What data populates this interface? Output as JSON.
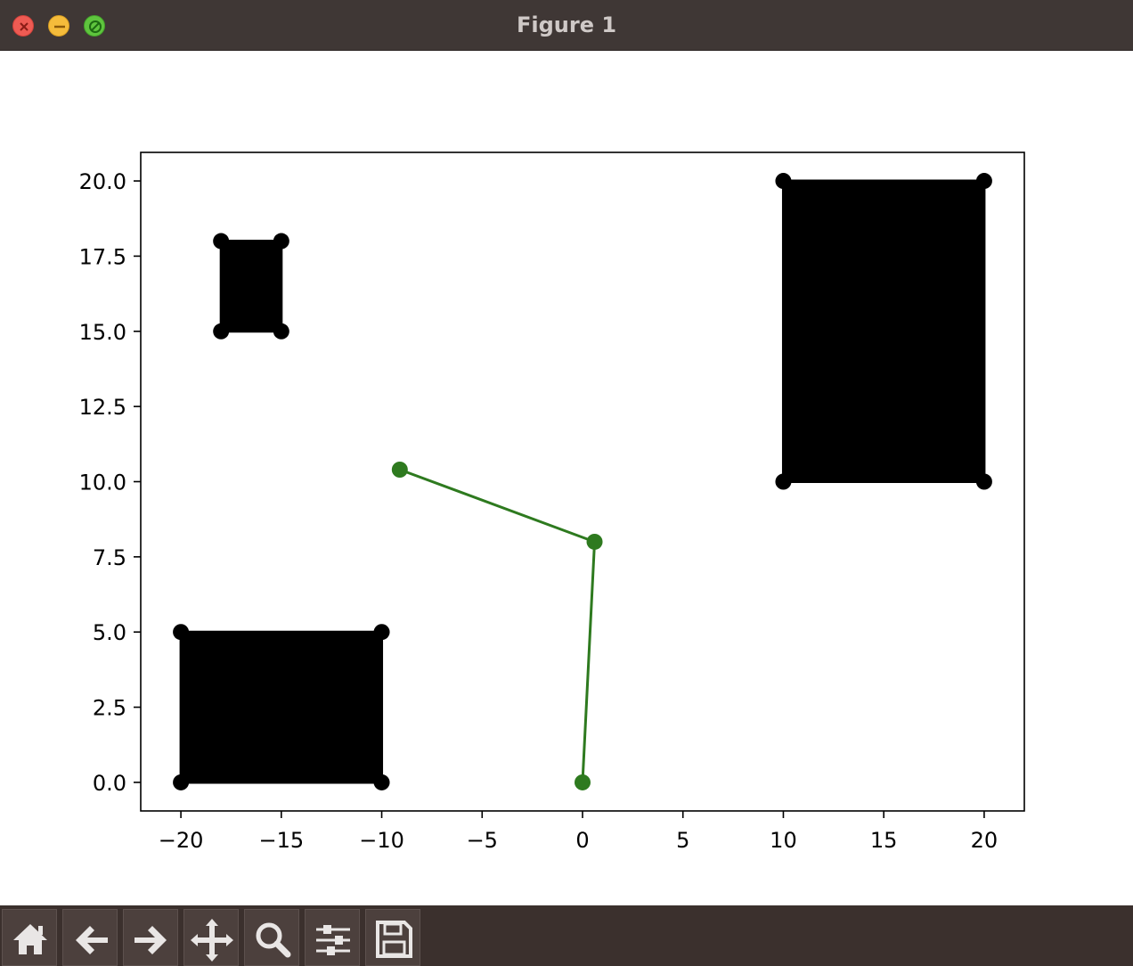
{
  "window": {
    "title": "Figure 1"
  },
  "toolbar": {
    "buttons": [
      {
        "name": "home-button",
        "icon": "home-icon"
      },
      {
        "name": "back-button",
        "icon": "arrow-left-icon"
      },
      {
        "name": "forward-button",
        "icon": "arrow-right-icon"
      },
      {
        "name": "pan-button",
        "icon": "move-icon"
      },
      {
        "name": "zoom-button",
        "icon": "magnifier-icon"
      },
      {
        "name": "configure-subplots-button",
        "icon": "sliders-icon"
      },
      {
        "name": "save-button",
        "icon": "floppy-disk-icon"
      }
    ]
  },
  "colors": {
    "titlebar": "#3f3735",
    "toolbar": "#3b302d",
    "obstacle": "#000000",
    "path": "#2e7a1f"
  },
  "chart_data": {
    "type": "scatter",
    "title": "",
    "xlabel": "",
    "ylabel": "",
    "xlim": [
      -22,
      22
    ],
    "ylim": [
      -0.95,
      20.95
    ],
    "x_ticks": [
      -20,
      -15,
      -10,
      -5,
      0,
      5,
      10,
      15,
      20
    ],
    "x_tick_labels": [
      "−20",
      "−15",
      "−10",
      "−5",
      "0",
      "5",
      "10",
      "15",
      "20"
    ],
    "y_ticks": [
      0,
      2.5,
      5,
      7.5,
      10,
      12.5,
      15,
      17.5,
      20
    ],
    "y_tick_labels": [
      "0.0",
      "2.5",
      "5.0",
      "7.5",
      "10.0",
      "12.5",
      "15.0",
      "17.5",
      "20.0"
    ],
    "grid": false,
    "series": [
      {
        "kind": "filled-rectangle",
        "color": "#000000",
        "points": [
          [
            -20,
            0
          ],
          [
            -10,
            0
          ],
          [
            -10,
            5
          ],
          [
            -20,
            5
          ]
        ]
      },
      {
        "kind": "filled-rectangle",
        "color": "#000000",
        "points": [
          [
            -18,
            15
          ],
          [
            -15,
            15
          ],
          [
            -15,
            18
          ],
          [
            -18,
            18
          ]
        ]
      },
      {
        "kind": "filled-rectangle",
        "color": "#000000",
        "points": [
          [
            10,
            10
          ],
          [
            20,
            10
          ],
          [
            20,
            20
          ],
          [
            10,
            20
          ]
        ]
      },
      {
        "kind": "line-with-markers",
        "color": "#2e7a1f",
        "points": [
          [
            0,
            0
          ],
          [
            0.6,
            8
          ],
          [
            -9.1,
            10.4
          ]
        ]
      }
    ]
  }
}
